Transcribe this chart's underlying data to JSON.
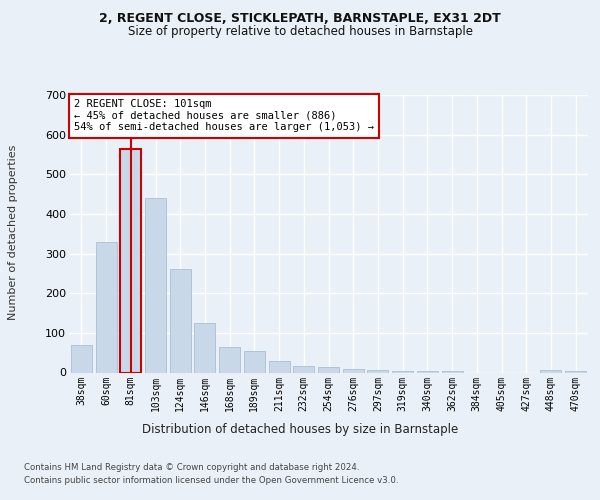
{
  "title_line1": "2, REGENT CLOSE, STICKLEPATH, BARNSTAPLE, EX31 2DT",
  "title_line2": "Size of property relative to detached houses in Barnstaple",
  "xlabel": "Distribution of detached houses by size in Barnstaple",
  "ylabel": "Number of detached properties",
  "categories": [
    "38sqm",
    "60sqm",
    "81sqm",
    "103sqm",
    "124sqm",
    "146sqm",
    "168sqm",
    "189sqm",
    "211sqm",
    "232sqm",
    "254sqm",
    "276sqm",
    "297sqm",
    "319sqm",
    "340sqm",
    "362sqm",
    "384sqm",
    "405sqm",
    "427sqm",
    "448sqm",
    "470sqm"
  ],
  "values": [
    70,
    330,
    565,
    440,
    260,
    125,
    65,
    55,
    30,
    17,
    13,
    10,
    6,
    5,
    5,
    4,
    0,
    0,
    0,
    6,
    5
  ],
  "bar_color": "#c8d8e8",
  "bar_edge_color": "#a0b8cc",
  "highlight_bar_index": 2,
  "highlight_edge_color": "#cc0000",
  "vline_color": "#cc0000",
  "annotation_text": "2 REGENT CLOSE: 101sqm\n← 45% of detached houses are smaller (886)\n54% of semi-detached houses are larger (1,053) →",
  "annotation_box_color": "#ffffff",
  "annotation_box_edge": "#cc0000",
  "ylim": [
    0,
    700
  ],
  "yticks": [
    0,
    100,
    200,
    300,
    400,
    500,
    600,
    700
  ],
  "bg_color": "#eaf0f8",
  "plot_bg_color": "#eaf0f8",
  "grid_color": "#ffffff",
  "footer_line1": "Contains HM Land Registry data © Crown copyright and database right 2024.",
  "footer_line2": "Contains public sector information licensed under the Open Government Licence v3.0."
}
